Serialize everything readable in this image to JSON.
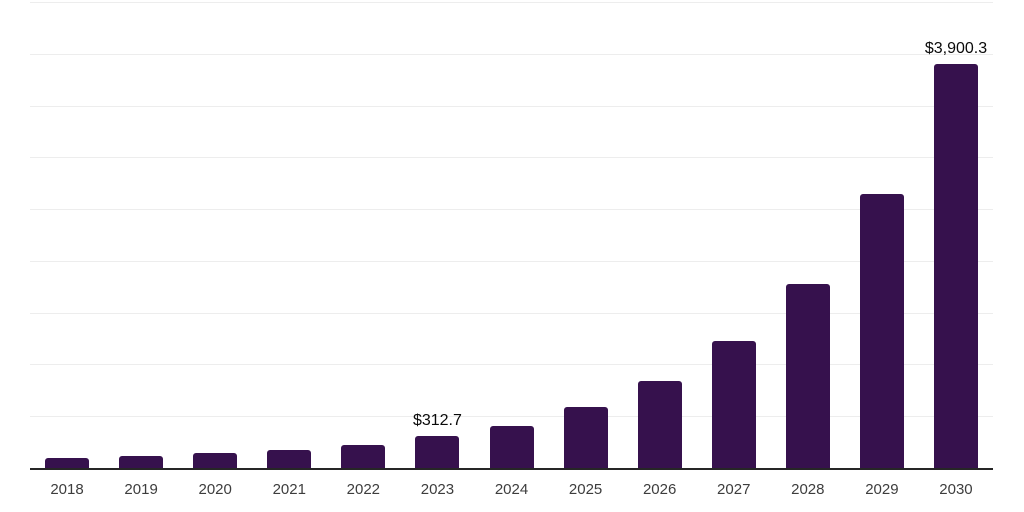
{
  "chart_data": {
    "type": "bar",
    "title": "",
    "xlabel": "",
    "ylabel": "",
    "categories": [
      "2018",
      "2019",
      "2020",
      "2021",
      "2022",
      "2023",
      "2024",
      "2025",
      "2026",
      "2027",
      "2028",
      "2029",
      "2030"
    ],
    "values": [
      100,
      120,
      145,
      175,
      220,
      312.7,
      410,
      585,
      845,
      1225,
      1780,
      2645,
      3900.3
    ],
    "data_labels": [
      "",
      "",
      "",
      "",
      "",
      "$312.7",
      "",
      "",
      "",
      "",
      "",
      "",
      "$3,900.3"
    ],
    "labeled_points": [
      {
        "category": "2023",
        "label": "$312.7",
        "value": 312.7
      },
      {
        "category": "2030",
        "label": "$3,900.3",
        "value": 3900.3
      }
    ],
    "ylim": [
      0,
      4500
    ],
    "gridline_interval": 500,
    "grid": true,
    "legend": "none",
    "colors": {
      "bar": "#36114D",
      "gridline": "#ededed",
      "axis_line": "#262626",
      "tick_label": "#3d3d3d",
      "data_label": "#0a0a0a",
      "background": "#ffffff"
    }
  }
}
